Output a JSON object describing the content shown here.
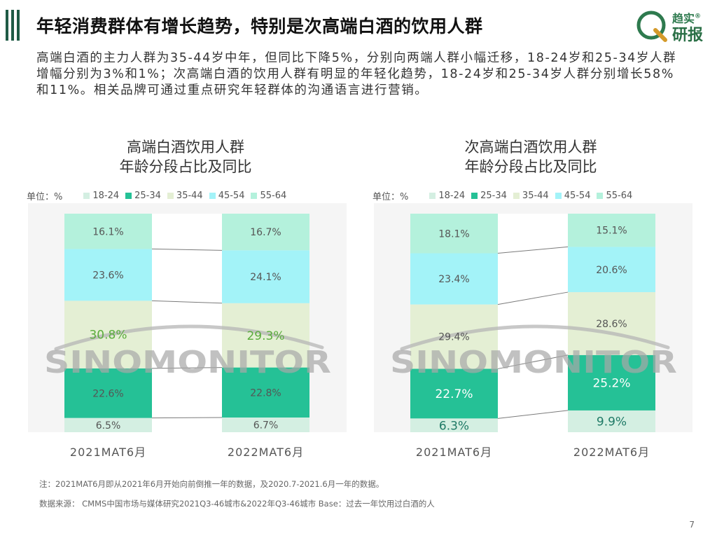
{
  "header": {
    "title": "年轻消费群体有增长趋势，特别是次高端白酒的饮用人群",
    "logo_line1": "趋实",
    "logo_line2": "研报",
    "logo_mark": "®"
  },
  "summary": "高端白酒的主力人群为35-44岁中年，但同比下降5%，分别向两端人群小幅迁移，18-24岁和25-34岁人群增幅分别为3%和1%；次高端白酒的饮用人群有明显的年轻化趋势，18-24岁和25-34岁人群分别增长58%和11%。相关品牌可通过重点研究年轻群体的沟通语言进行营销。",
  "watermark": "SINOMONITOR",
  "colors": {
    "accent": "#1f5a45",
    "seg_18_24": "#d4efe2",
    "seg_25_34": "#25c196",
    "seg_35_44": "#e4efd4",
    "seg_45_54": "#a3f3f8",
    "seg_55_64": "#b4f1dc",
    "highlight_green": "#5aac3c",
    "highlight_dark": "#1f7a66"
  },
  "chart_data": [
    {
      "type": "bar",
      "stacked": true,
      "title_line1": "高端白酒饮用人群",
      "title_line2": "年龄分段占比及同比",
      "unit_label": "单位：%",
      "categories": [
        "2021MAT6月",
        "2022MAT6月"
      ],
      "series": [
        {
          "name": "18-24",
          "values": [
            6.5,
            6.7
          ],
          "labels": [
            "6.5%",
            "6.7%"
          ]
        },
        {
          "name": "25-34",
          "values": [
            22.6,
            22.8
          ],
          "labels": [
            "22.6%",
            "22.8%"
          ]
        },
        {
          "name": "35-44",
          "values": [
            30.8,
            29.3
          ],
          "labels": [
            "30.8%",
            "29.3%"
          ]
        },
        {
          "name": "45-54",
          "values": [
            23.6,
            24.1
          ],
          "labels": [
            "23.6%",
            "24.1%"
          ]
        },
        {
          "name": "55-64",
          "values": [
            16.1,
            16.7
          ],
          "labels": [
            "16.1%",
            "16.7%"
          ]
        }
      ],
      "legend_position": "top"
    },
    {
      "type": "bar",
      "stacked": true,
      "title_line1": "次高端白酒饮用人群",
      "title_line2": "年龄分段占比及同比",
      "unit_label": "单位：%",
      "categories": [
        "2021MAT6月",
        "2022MAT6月"
      ],
      "series": [
        {
          "name": "18-24",
          "values": [
            6.3,
            9.9
          ],
          "labels": [
            "6.3%",
            "9.9%"
          ]
        },
        {
          "name": "25-34",
          "values": [
            22.7,
            25.2
          ],
          "labels": [
            "22.7%",
            "25.2%"
          ]
        },
        {
          "name": "35-44",
          "values": [
            29.4,
            28.6
          ],
          "labels": [
            "29.4%",
            "28.6%"
          ]
        },
        {
          "name": "45-54",
          "values": [
            23.4,
            20.6
          ],
          "labels": [
            "23.4%",
            "20.6%"
          ]
        },
        {
          "name": "55-64",
          "values": [
            18.1,
            15.1
          ],
          "labels": [
            "18.1%",
            "15.1%"
          ]
        }
      ],
      "legend_position": "top"
    }
  ],
  "footer": {
    "note": "注：2021MAT6月即从2021年6月开始向前倒推一年的数据，及2020.7-2021.6月一年的数据。",
    "source": "数据来源： CMMS中国市场与媒体研究2021Q3-46城市&2022年Q3-46城市 Base：过去一年饮用过白酒的人",
    "page": "7"
  }
}
